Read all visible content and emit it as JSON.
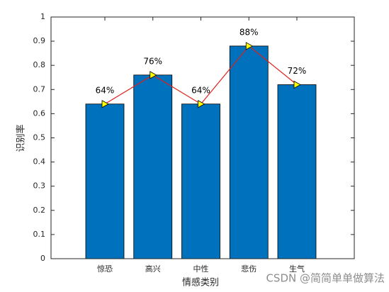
{
  "chart_data": {
    "type": "bar",
    "categories": [
      "惊恐",
      "高兴",
      "中性",
      "悲伤",
      "生气"
    ],
    "values": [
      0.64,
      0.76,
      0.64,
      0.88,
      0.72
    ],
    "value_labels": [
      "64%",
      "76%",
      "64%",
      "88%",
      "72%"
    ],
    "color": "#0072bd",
    "line_color": "#e0201b",
    "marker_color": "#ffff00",
    "xlabel": "情感类别",
    "ylabel": "识别率",
    "ylim": [
      0,
      1
    ],
    "yticks": [
      0,
      0.1,
      0.2,
      0.3,
      0.4,
      0.5,
      0.6,
      0.7,
      0.8,
      0.9,
      1
    ],
    "watermark": "CSDN @简简单单做算法"
  }
}
